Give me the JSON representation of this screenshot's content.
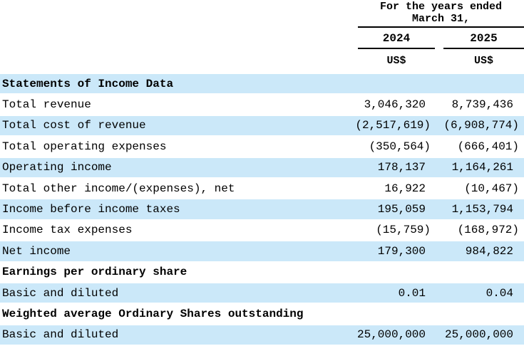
{
  "header": {
    "period_line1": "For the years ended",
    "period_line2": "March 31,",
    "columns": [
      {
        "year": "2024",
        "currency": "US$"
      },
      {
        "year": "2025",
        "currency": "US$"
      }
    ]
  },
  "table": {
    "rows": [
      {
        "label": "Statements of Income Data",
        "v2024": "",
        "v2025": "",
        "bold": true,
        "shaded": true
      },
      {
        "label": "Total revenue",
        "v2024": "3,046,320",
        "v2025": "8,739,436",
        "bold": false,
        "shaded": false
      },
      {
        "label": "Total cost of revenue",
        "v2024": "(2,517,619)",
        "v2025": "(6,908,774)",
        "bold": false,
        "shaded": true
      },
      {
        "label": "Total operating expenses",
        "v2024": "(350,564)",
        "v2025": "(666,401)",
        "bold": false,
        "shaded": false
      },
      {
        "label": "Operating income",
        "v2024": "178,137",
        "v2025": "1,164,261",
        "bold": false,
        "shaded": true
      },
      {
        "label": "Total other income/(expenses), net",
        "v2024": "16,922",
        "v2025": "(10,467)",
        "bold": false,
        "shaded": false
      },
      {
        "label": "Income before income taxes",
        "v2024": "195,059",
        "v2025": "1,153,794",
        "bold": false,
        "shaded": true
      },
      {
        "label": "Income tax expenses",
        "v2024": "(15,759)",
        "v2025": "(168,972)",
        "bold": false,
        "shaded": false
      },
      {
        "label": "Net income",
        "v2024": "179,300",
        "v2025": "984,822",
        "bold": false,
        "shaded": true
      },
      {
        "label": "Earnings per ordinary share",
        "v2024": "",
        "v2025": "",
        "bold": true,
        "shaded": false
      },
      {
        "label": "Basic and diluted",
        "v2024": "0.01",
        "v2025": "0.04",
        "bold": false,
        "shaded": true
      },
      {
        "label": "Weighted average Ordinary Shares outstanding",
        "v2024": "",
        "v2025": "",
        "bold": true,
        "shaded": false
      },
      {
        "label": "Basic and diluted",
        "v2024": "25,000,000",
        "v2025": "25,000,000",
        "bold": false,
        "shaded": true
      }
    ]
  },
  "colors": {
    "row_shade": "#cbe8f9",
    "text": "#000000",
    "rule": "#000000"
  }
}
